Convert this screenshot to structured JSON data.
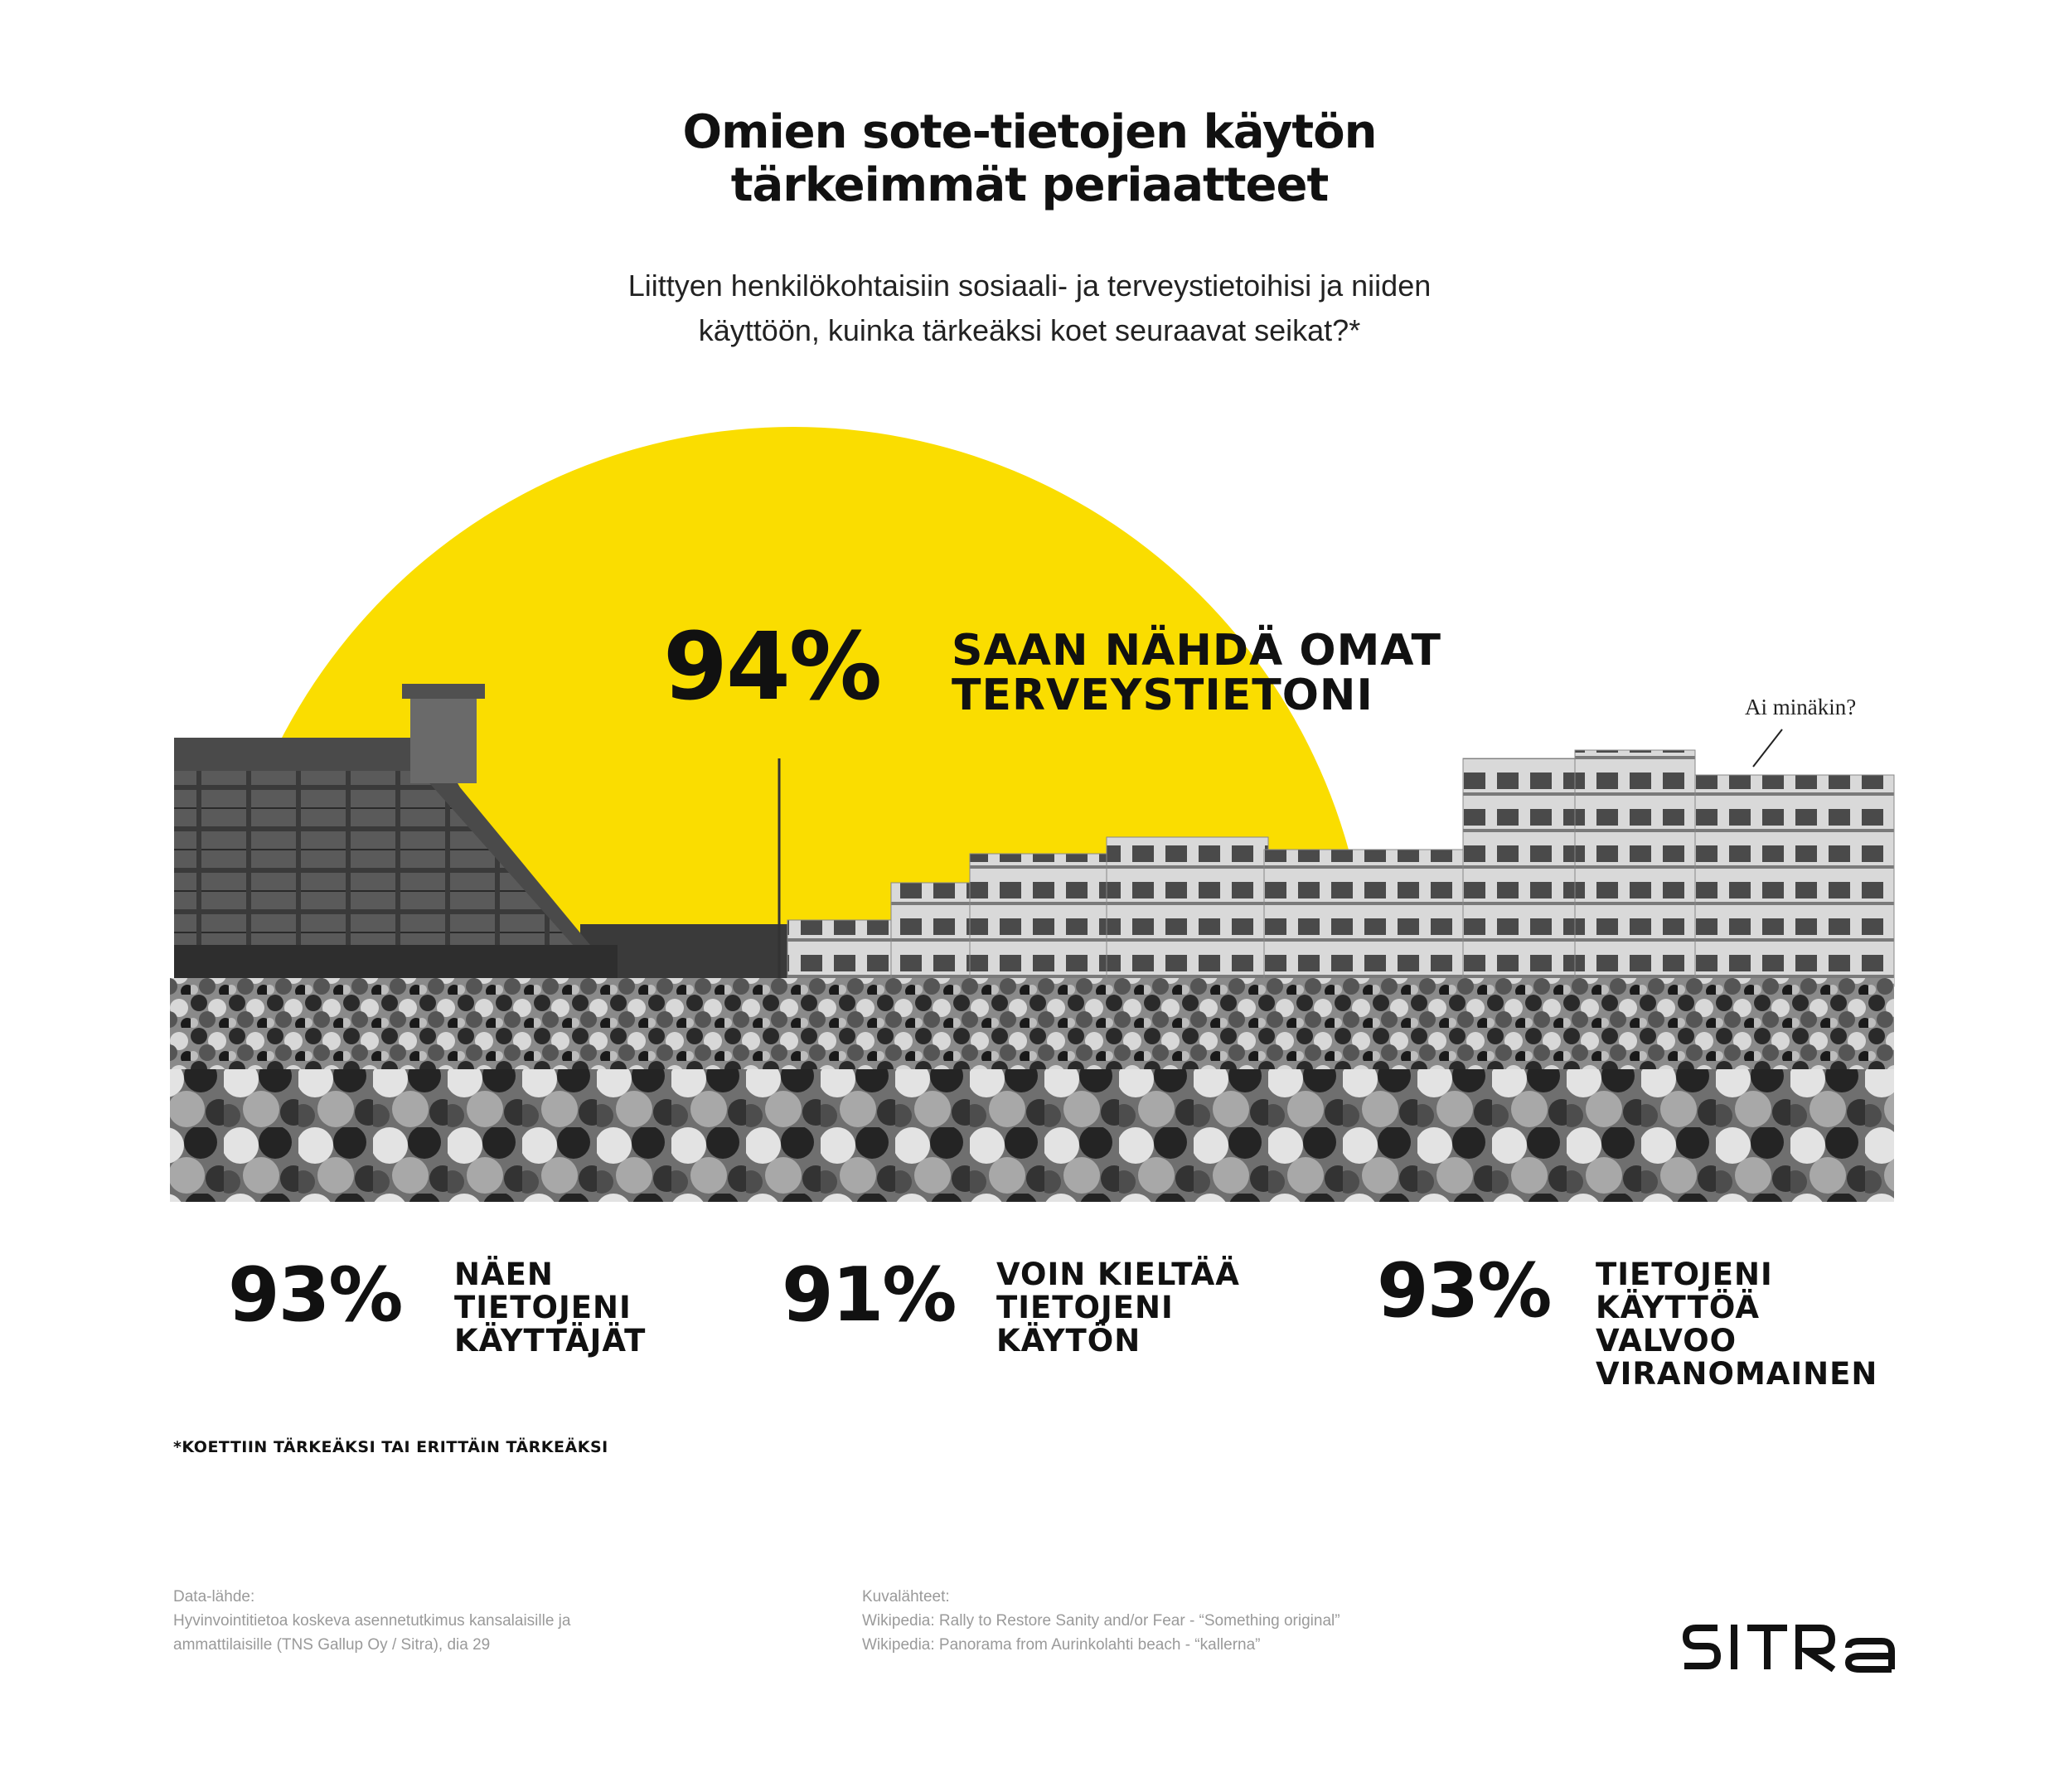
{
  "title": {
    "line1": "Omien sote-tietojen käytön",
    "line2": "tärkeimmät periaatteet"
  },
  "subtitle": {
    "line1": "Liittyen henkilökohtaisiin sosiaali- ja terveystietoihisi ja niiden",
    "line2": "käyttöön, kuinka tärkeäksi koet seuraavat seikat?*"
  },
  "colors": {
    "accent_yellow": "#FADD00",
    "text": "#111111",
    "muted": "#9a9a9a"
  },
  "stats": [
    {
      "value": "94%",
      "label_lines": [
        "SAAN NÄHDÄ OMAT",
        "TERVEYSTIETONI"
      ]
    },
    {
      "value": "93%",
      "label_lines": [
        "NÄEN",
        "TIETOJENI",
        "KÄYTTÄJÄT"
      ]
    },
    {
      "value": "91%",
      "label_lines": [
        "VOIN KIELTÄÄ",
        "TIETOJENI",
        "KÄYTÖN"
      ]
    },
    {
      "value": "93%",
      "label_lines": [
        "TIETOJENI",
        "KÄYTTÖÄ",
        "VALVOO",
        "VIRANOMAINEN"
      ]
    }
  ],
  "speech_bubble": "Ai minäkin?",
  "footnote": "*KOETTIIN TÄRKEÄKSI TAI ERITTÄIN TÄRKEÄKSI",
  "data_source": {
    "heading": "Data-lähde:",
    "line1": "Hyvinvointitietoa koskeva asennetutkimus kansalaisille ja",
    "line2": "ammattilaisille (TNS Gallup Oy / Sitra), dia 29"
  },
  "image_sources": {
    "heading": "Kuvalähteet:",
    "line1": "Wikipedia: Rally to Restore Sanity and/or Fear - “Something original”",
    "line2": "Wikipedia: Panorama from Aurinkolahti beach - “kallerna”"
  },
  "logo": "SITRA"
}
